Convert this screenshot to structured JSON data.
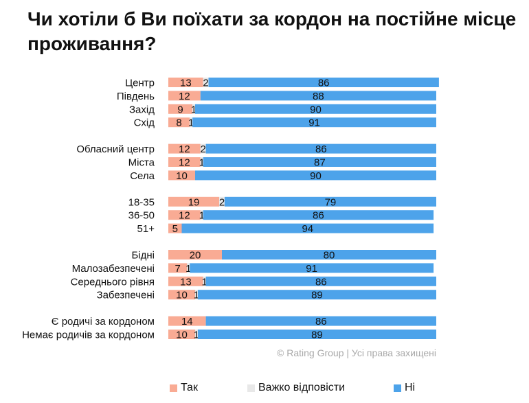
{
  "chart_data": {
    "type": "bar",
    "orientation": "horizontal",
    "stacked": true,
    "title": "Чи хотіли б Ви поїхати за кордон на постійне місце проживання?",
    "xlim": [
      0,
      100
    ],
    "grid": false,
    "legend_position": "bottom",
    "series": [
      {
        "name": "Так",
        "color": "#f9ab94"
      },
      {
        "name": "Важко відповісти",
        "color": "#e8e8e8"
      },
      {
        "name": "Ні",
        "color": "#4da3ea"
      }
    ],
    "groups": [
      [
        {
          "label": "Центр",
          "values": [
            13,
            2,
            86
          ]
        },
        {
          "label": "Південь",
          "values": [
            12,
            null,
            88
          ]
        },
        {
          "label": "Захід",
          "values": [
            9,
            1,
            90
          ]
        },
        {
          "label": "Схід",
          "values": [
            8,
            1,
            91
          ]
        }
      ],
      [
        {
          "label": "Обласний центр",
          "values": [
            12,
            2,
            86
          ]
        },
        {
          "label": "Міста",
          "values": [
            12,
            1,
            87
          ]
        },
        {
          "label": "Села",
          "values": [
            10,
            null,
            90
          ]
        }
      ],
      [
        {
          "label": "18-35",
          "values": [
            19,
            2,
            79
          ]
        },
        {
          "label": "36-50",
          "values": [
            12,
            1,
            86
          ]
        },
        {
          "label": "51+",
          "values": [
            5,
            null,
            94
          ]
        }
      ],
      [
        {
          "label": "Бідні",
          "values": [
            20,
            null,
            80
          ]
        },
        {
          "label": "Малозабезпечені",
          "values": [
            7,
            1,
            91
          ]
        },
        {
          "label": "Середнього рівня",
          "values": [
            13,
            1,
            86
          ]
        },
        {
          "label": "Забезпечені",
          "values": [
            10,
            1,
            89
          ]
        }
      ],
      [
        {
          "label": "Є родичі за кордоном",
          "values": [
            14,
            null,
            86
          ]
        },
        {
          "label": "Немає родичів за кордоном",
          "values": [
            10,
            1,
            89
          ]
        }
      ]
    ]
  },
  "footer": "© Rating Group | Усі права захищені"
}
